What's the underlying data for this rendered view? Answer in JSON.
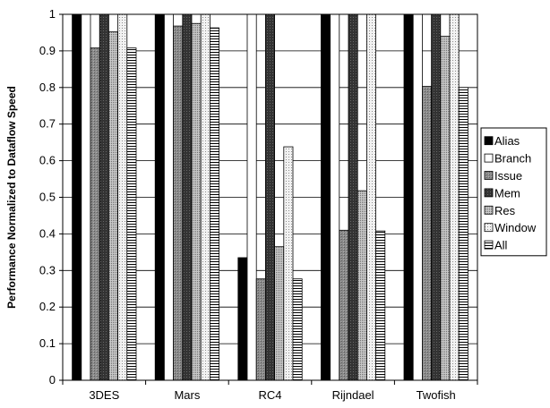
{
  "chart_data": {
    "type": "bar",
    "title": "",
    "xlabel": "",
    "ylabel": "Performance Normalized to Dataflow Speed",
    "ylim": [
      0,
      1
    ],
    "yticks": [
      "0",
      "0.1",
      "0.2",
      "0.3",
      "0.4",
      "0.5",
      "0.6",
      "0.7",
      "0.8",
      "0.9",
      "1"
    ],
    "grid": true,
    "legend_position": "right",
    "categories": [
      "3DES",
      "Mars",
      "RC4",
      "Rijndael",
      "Twofish"
    ],
    "series": [
      {
        "name": "Alias",
        "pattern": "solid-black",
        "values": [
          1.0,
          1.0,
          0.335,
          1.0,
          1.0
        ]
      },
      {
        "name": "Branch",
        "pattern": "white",
        "values": [
          1.0,
          1.0,
          1.0,
          1.0,
          1.0
        ]
      },
      {
        "name": "Issue",
        "pattern": "gray",
        "values": [
          0.908,
          0.968,
          0.277,
          0.41,
          0.803
        ]
      },
      {
        "name": "Mem",
        "pattern": "dark-check",
        "values": [
          1.0,
          1.0,
          1.0,
          1.0,
          1.0
        ]
      },
      {
        "name": "Res",
        "pattern": "light-dots",
        "values": [
          0.952,
          0.975,
          0.365,
          0.518,
          0.94
        ]
      },
      {
        "name": "Window",
        "pattern": "fine-dots",
        "values": [
          1.0,
          1.0,
          0.638,
          1.0,
          1.0
        ]
      },
      {
        "name": "All",
        "pattern": "h-stripes",
        "values": [
          0.908,
          0.963,
          0.277,
          0.408,
          0.8
        ]
      }
    ]
  }
}
